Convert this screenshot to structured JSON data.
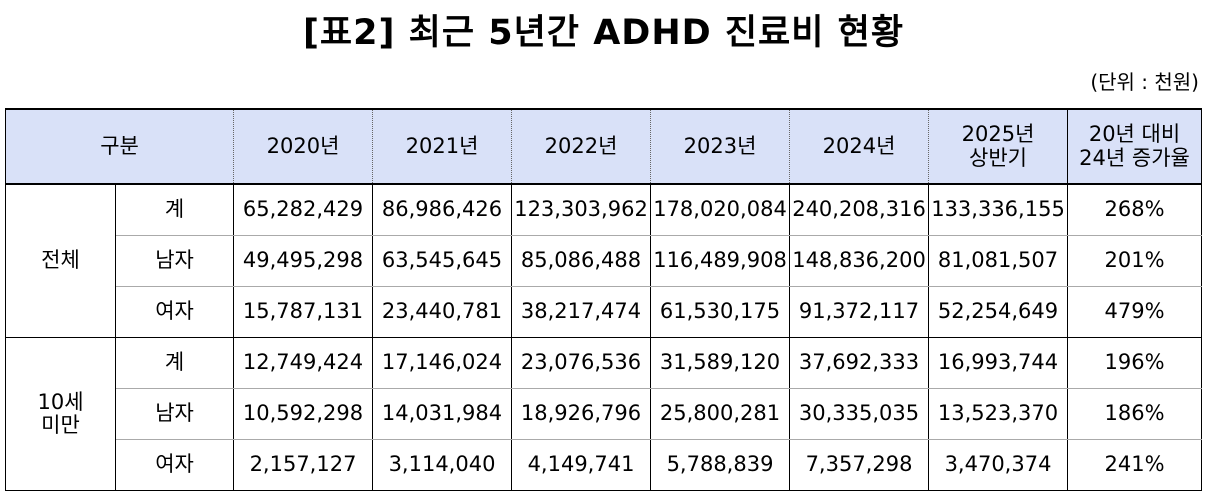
{
  "title": "[표2] 최근 5년간 ADHD 진료비 현황",
  "unit": "(단위 : 천원)",
  "header": {
    "category": "구분",
    "years": [
      "2020년",
      "2021년",
      "2022년",
      "2023년",
      "2024년"
    ],
    "h2025_line1": "2025년",
    "h2025_line2": "상반기",
    "growth_line1": "20년 대비",
    "growth_line2": "24년 증가율"
  },
  "groups": [
    {
      "name_line1": "전체",
      "name_line2": "",
      "rows": [
        {
          "label": "계",
          "values": [
            "65,282,429",
            "86,986,426",
            "123,303,962",
            "178,020,084",
            "240,208,316",
            "133,336,155"
          ],
          "growth": "268%"
        },
        {
          "label": "남자",
          "values": [
            "49,495,298",
            "63,545,645",
            "85,086,488",
            "116,489,908",
            "148,836,200",
            "81,081,507"
          ],
          "growth": "201%"
        },
        {
          "label": "여자",
          "values": [
            "15,787,131",
            "23,440,781",
            "38,217,474",
            "61,530,175",
            "91,372,117",
            "52,254,649"
          ],
          "growth": "479%"
        }
      ]
    },
    {
      "name_line1": "10세",
      "name_line2": "미만",
      "rows": [
        {
          "label": "계",
          "values": [
            "12,749,424",
            "17,146,024",
            "23,076,536",
            "31,589,120",
            "37,692,333",
            "16,993,744"
          ],
          "growth": "196%"
        },
        {
          "label": "남자",
          "values": [
            "10,592,298",
            "14,031,984",
            "18,926,796",
            "25,800,281",
            "30,335,035",
            "13,523,370"
          ],
          "growth": "186%"
        },
        {
          "label": "여자",
          "values": [
            "2,157,127",
            "3,114,040",
            "4,149,741",
            "5,788,839",
            "7,357,298",
            "3,470,374"
          ],
          "growth": "241%"
        }
      ]
    }
  ]
}
